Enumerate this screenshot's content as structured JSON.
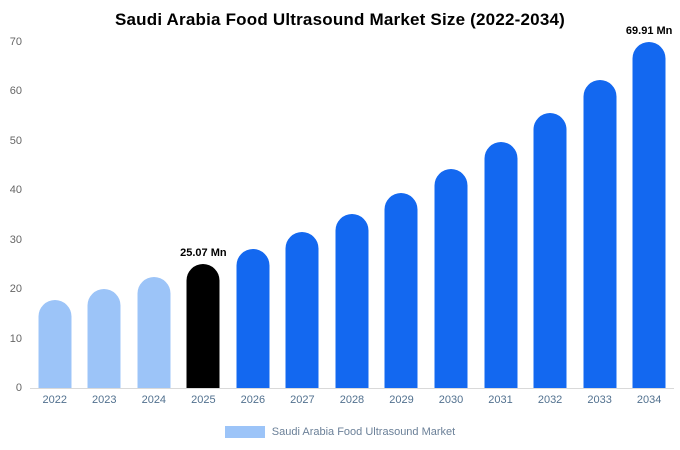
{
  "title": "Saudi Arabia Food Ultrasound Market Size (2022-2034)",
  "legend": {
    "label": "Saudi Arabia Food Ultrasound Market",
    "swatch_color": "#9cc4f8"
  },
  "colors": {
    "light_blue": "#9cc4f8",
    "highlight_black": "#000000",
    "primary_blue": "#1368f0",
    "axis_text": "#666666",
    "x_label_text": "#52718f"
  },
  "chart_data": {
    "type": "bar",
    "title": "Saudi Arabia Food Ultrasound Market Size (2022-2034)",
    "categories": [
      "2022",
      "2023",
      "2024",
      "2025",
      "2026",
      "2027",
      "2028",
      "2029",
      "2030",
      "2031",
      "2032",
      "2033",
      "2034"
    ],
    "values": [
      17.81,
      19.96,
      22.37,
      25.07,
      28.1,
      31.49,
      35.29,
      39.55,
      44.33,
      49.68,
      55.68,
      62.38,
      69.91
    ],
    "bar_colors": [
      "#9cc4f8",
      "#9cc4f8",
      "#9cc4f8",
      "#000000",
      "#1368f0",
      "#1368f0",
      "#1368f0",
      "#1368f0",
      "#1368f0",
      "#1368f0",
      "#1368f0",
      "#1368f0",
      "#1368f0"
    ],
    "annotations": [
      {
        "category": "2025",
        "text": "25.07 Mn"
      },
      {
        "category": "2034",
        "text": "69.91 Mn"
      }
    ],
    "xlabel": "",
    "ylabel": "",
    "ylim": [
      0,
      70
    ],
    "yticks": [
      0,
      10,
      20,
      30,
      40,
      50,
      60,
      70
    ],
    "grid": false,
    "legend_position": "bottom",
    "legend_entries": [
      "Saudi Arabia Food Ultrasound Market"
    ],
    "unit": "Mn"
  }
}
